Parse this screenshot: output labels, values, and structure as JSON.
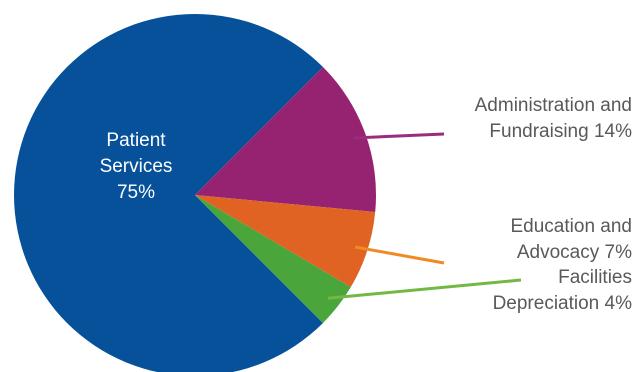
{
  "chart_data": {
    "type": "pie",
    "slices": [
      {
        "label_line1": "Patient",
        "label_line2": "Services",
        "label_line3": "75%",
        "value": 75,
        "color": "#06519a",
        "label_position": "inside"
      },
      {
        "label_line1": "Administration and",
        "label_line2": "Fundraising 14%",
        "value": 14,
        "color": "#952372",
        "label_position": "outside",
        "leader_color": "#9c2a7e"
      },
      {
        "label_line1": "Education and",
        "label_line2": "Advocacy 7%",
        "value": 7,
        "color": "#e16324",
        "label_position": "outside",
        "leader_color": "#f08a24"
      },
      {
        "label_line1": "Facilities",
        "label_line2": "Depreciation 4%",
        "value": 4,
        "color": "#4aa63a",
        "label_position": "outside",
        "leader_color": "#72b843"
      }
    ]
  }
}
